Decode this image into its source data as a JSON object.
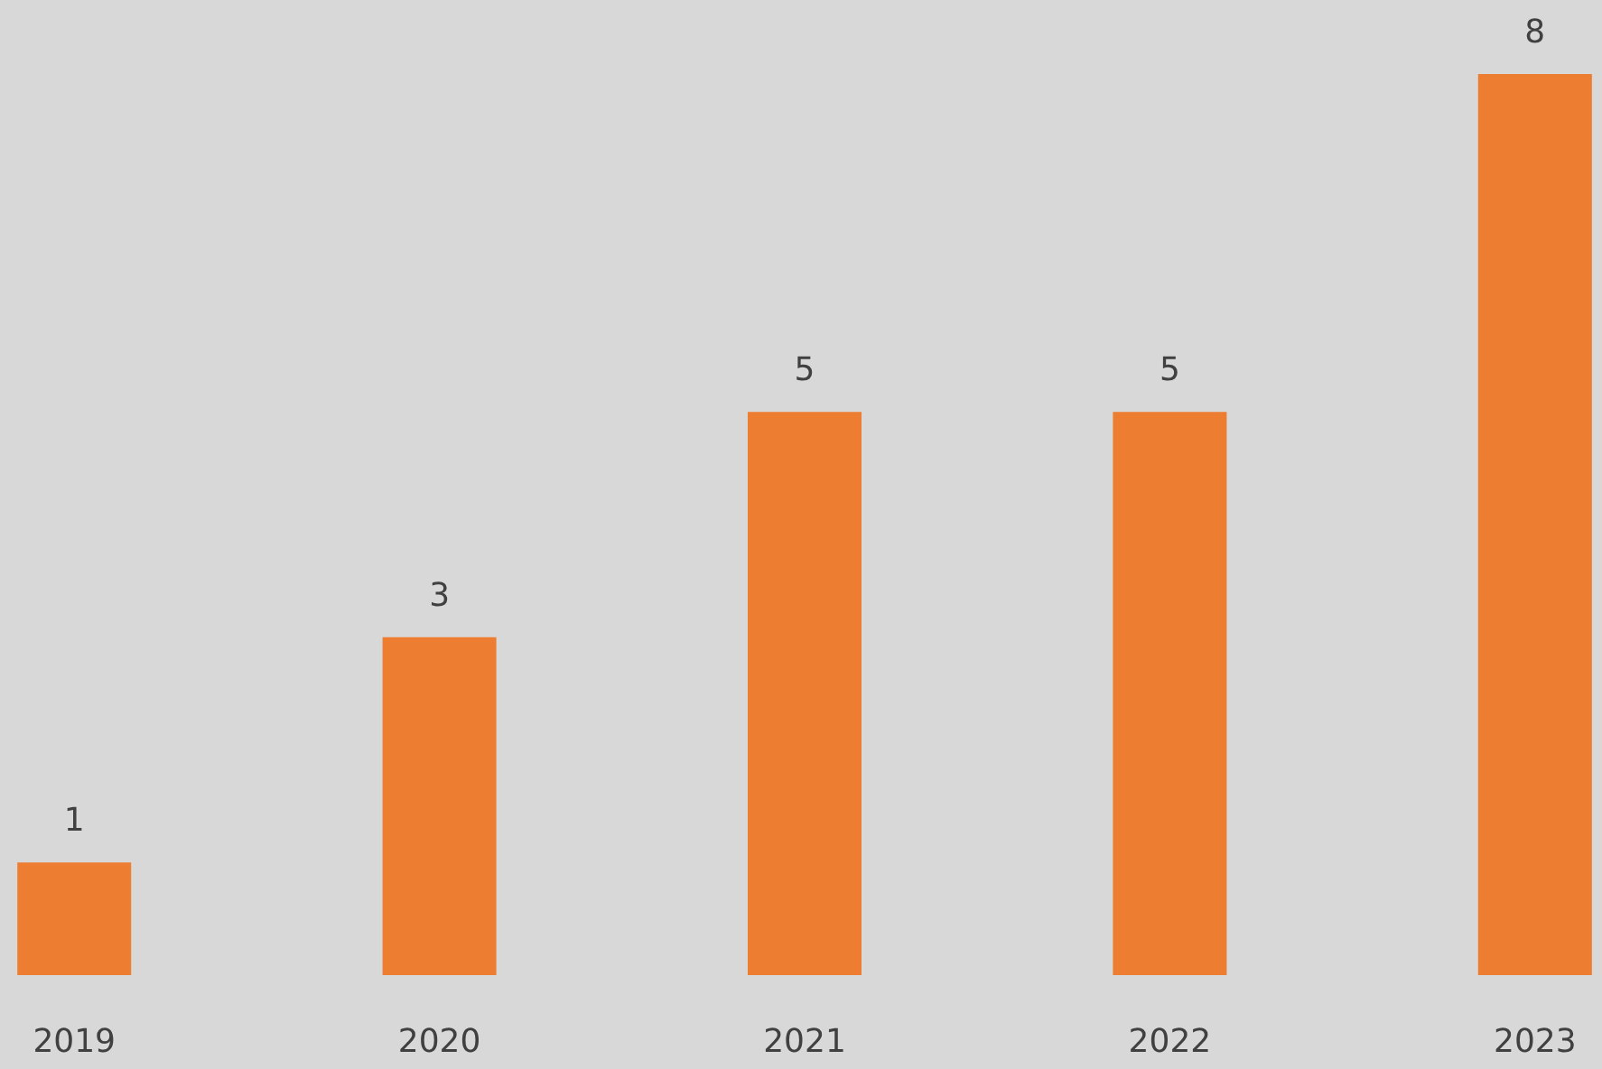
{
  "chart_data": {
    "type": "bar",
    "categories": [
      "2019",
      "2020",
      "2021",
      "2022",
      "2023"
    ],
    "values": [
      1,
      3,
      5,
      5,
      8
    ],
    "color": "#ed7d31",
    "data_labels": true
  }
}
